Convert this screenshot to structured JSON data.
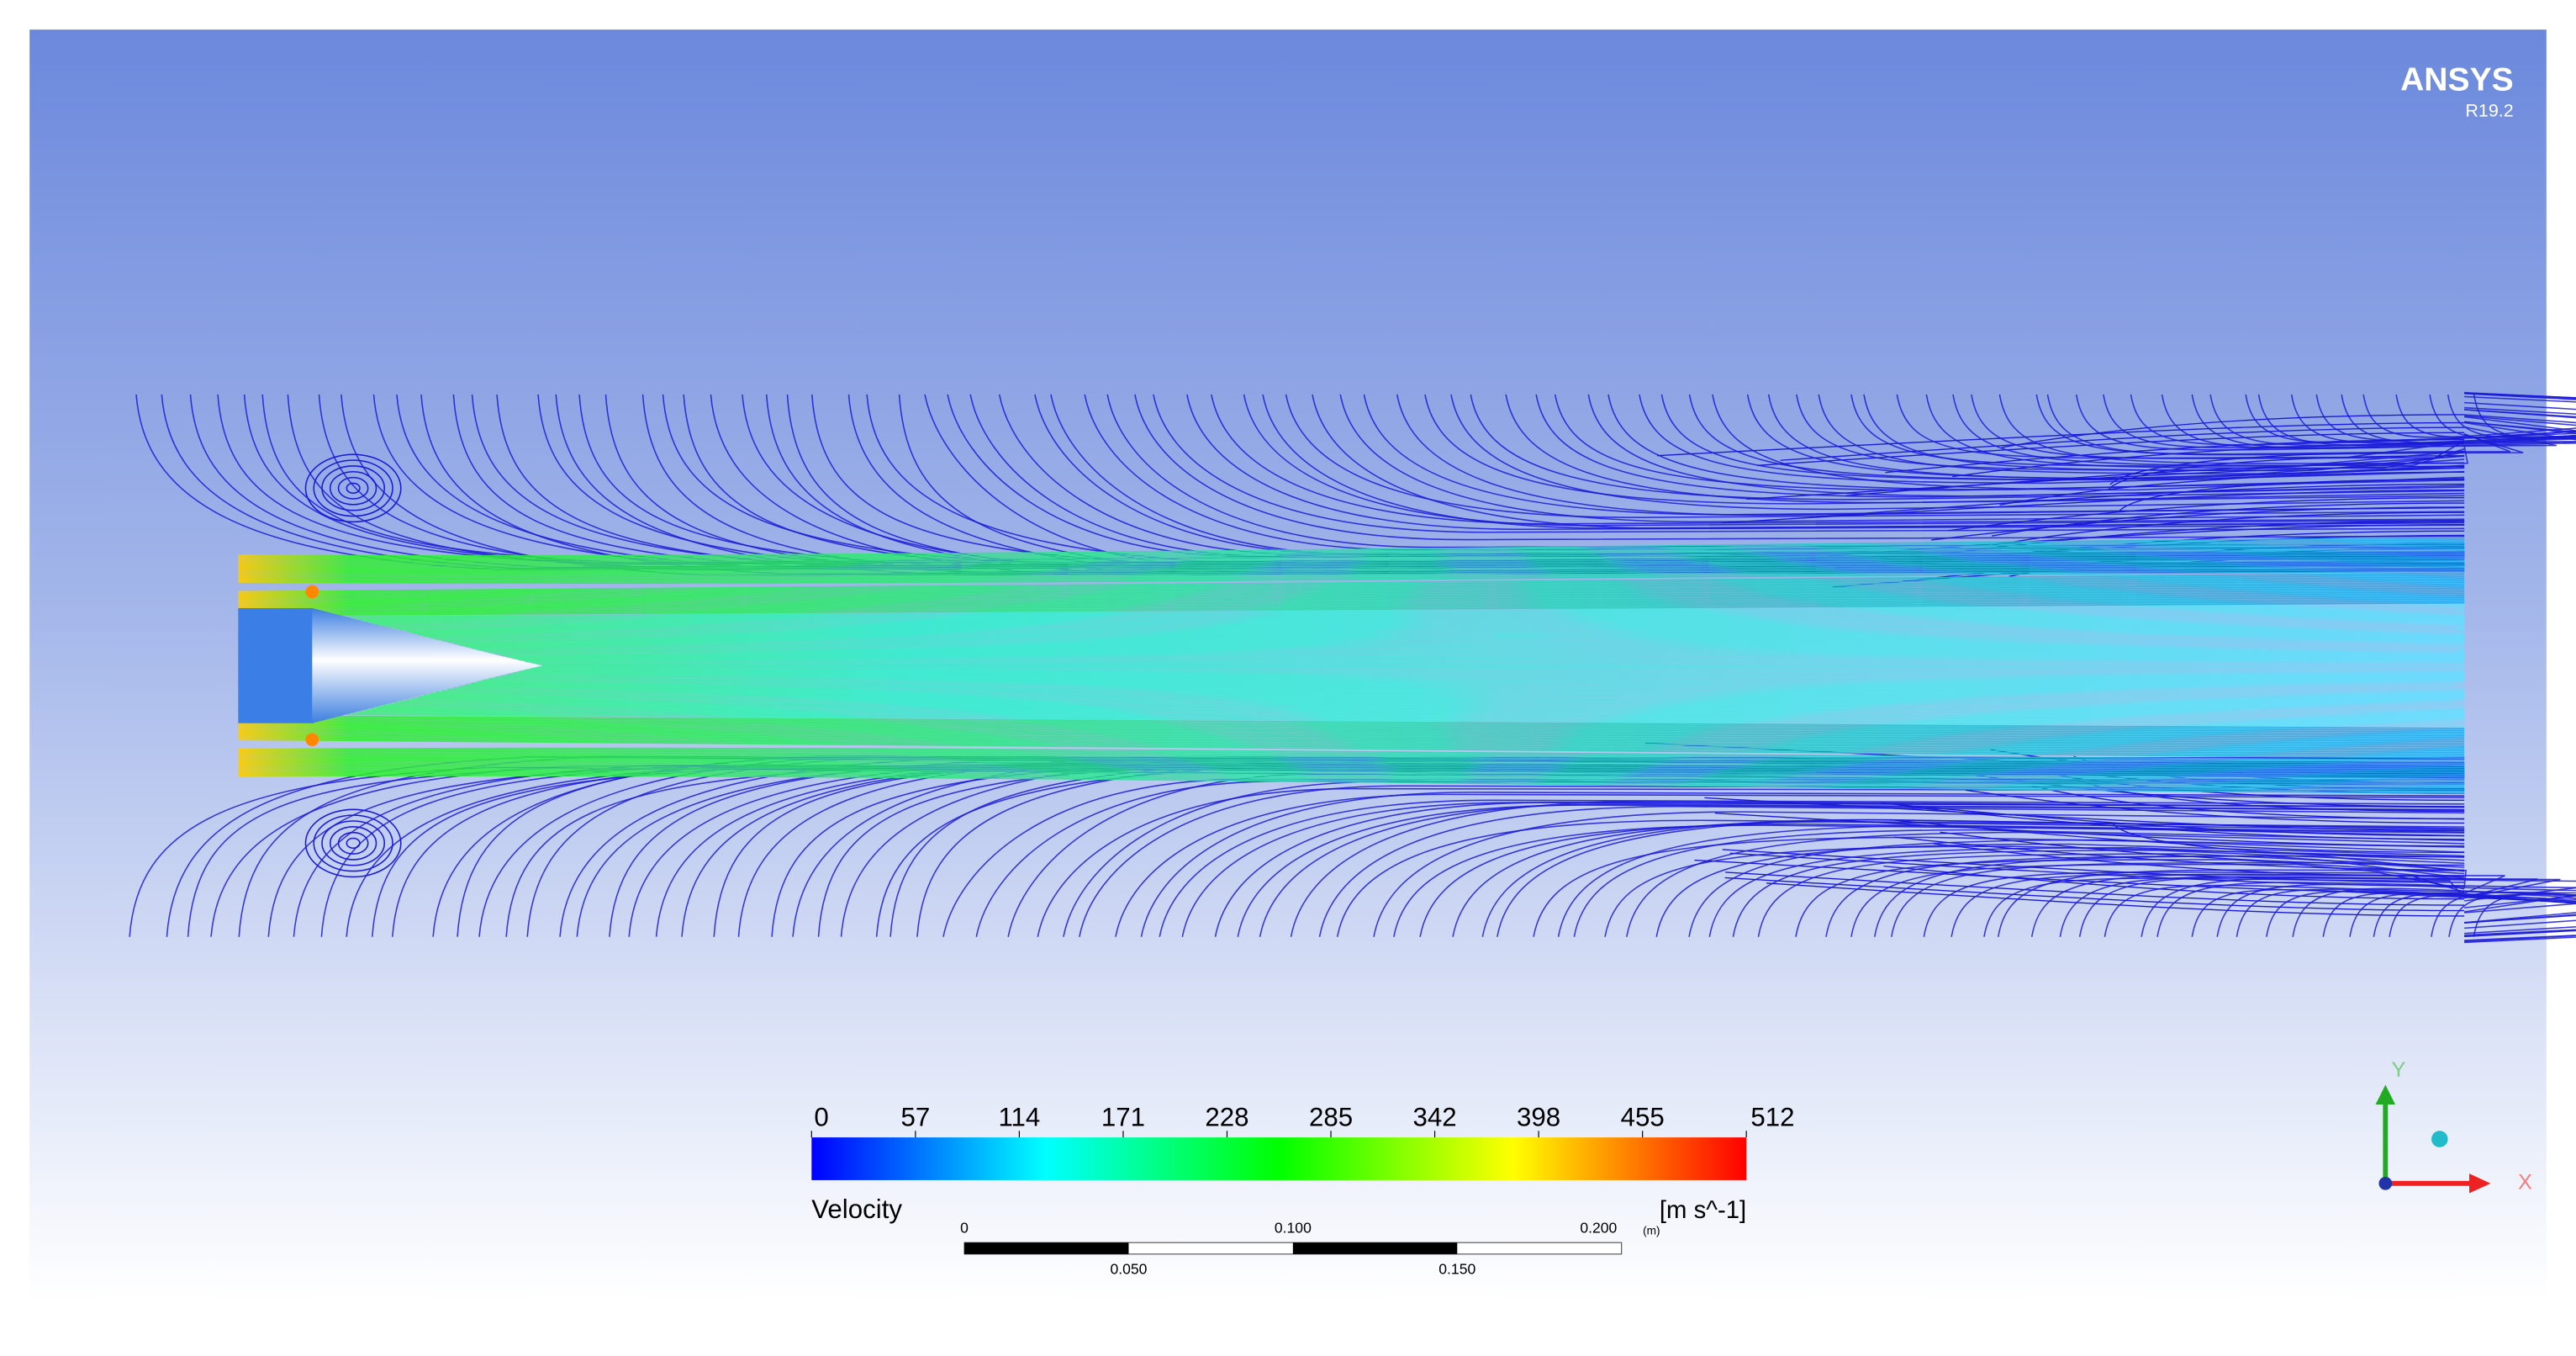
{
  "header": {
    "brand": "ANSYS",
    "version": "R19.2"
  },
  "legend": {
    "title": "Velocity",
    "unit": "[m s^-1]",
    "ticks": [
      0,
      57,
      114,
      171,
      228,
      285,
      342,
      398,
      455,
      512
    ]
  },
  "scale_bar": {
    "labels_top": [
      "0",
      "0.100",
      "0.200"
    ],
    "unit": "(m)",
    "labels_bottom": [
      "0.050",
      "0.150"
    ]
  },
  "axes": {
    "y": "Y",
    "x": "X"
  }
}
